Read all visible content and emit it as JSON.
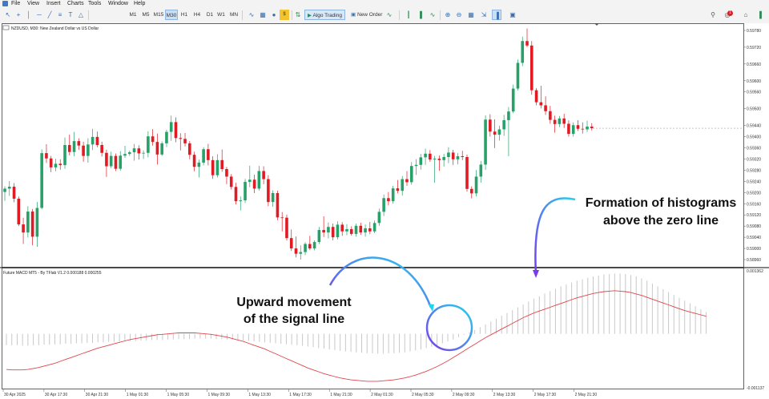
{
  "menu": [
    "File",
    "View",
    "Insert",
    "Charts",
    "Tools",
    "Window",
    "Help"
  ],
  "toolbar": {
    "timeframes": [
      "M1",
      "M5",
      "M15",
      "M30",
      "H1",
      "H4",
      "D1",
      "W1",
      "MN"
    ],
    "active_timeframe": "M30",
    "algo_trading_label": "Algo Trading",
    "new_order_label": "New Order",
    "notification_count": "1",
    "icons": [
      "cursor-icon",
      "crosshair-icon",
      "vertical-line-icon",
      "horizontal-line-icon",
      "trendline-icon",
      "channel-icon",
      "text-icon",
      "shapes-icon",
      "indicators-icon",
      "templates-icon",
      "signals-icon",
      "algo-trading-icon",
      "new-order-icon",
      "trade-icon",
      "bar-chart-icon",
      "candles-icon",
      "line-chart-icon",
      "zoom-in-icon",
      "zoom-out-icon",
      "grid-icon",
      "autoscroll-icon",
      "chart-shift-icon",
      "screenshot-icon"
    ]
  },
  "chart": {
    "title": "NZDUSD, M30:  New Zealand Dollar vs US Dollar",
    "colors": {
      "bull": "#26a269",
      "bear": "#e01b24",
      "signal": "#e0454a",
      "histogram": "#c8c8c8",
      "border": "#3b3b3b"
    },
    "price_axis": [
      "0.59780",
      "0.59720",
      "0.59660",
      "0.59600",
      "0.59560",
      "0.59500",
      "0.59440",
      "0.59400",
      "0.59360",
      "0.59320",
      "0.59280",
      "0.59240",
      "0.59200",
      "0.59160",
      "0.59120",
      "0.59080",
      "0.59040",
      "0.59000",
      "0.58960"
    ],
    "time_axis": [
      "30 Apr 2025",
      "30 Apr 17:30",
      "30 Apr 21:30",
      "1 May 01:30",
      "1 May 05:30",
      "1 May 09:30",
      "1 May 13:30",
      "1 May 17:30",
      "1 May 21:30",
      "2 May 01:30",
      "2 May 05:30",
      "2 May 09:30",
      "2 May 13:30",
      "2 May 17:30",
      "2 May 21:30"
    ],
    "candles": [
      {
        "o": 0.59202,
        "h": 0.59222,
        "l": 0.5917,
        "c": 0.59214
      },
      {
        "o": 0.59214,
        "h": 0.59241,
        "l": 0.59188,
        "c": 0.59221
      },
      {
        "o": 0.59221,
        "h": 0.59234,
        "l": 0.59165,
        "c": 0.59178
      },
      {
        "o": 0.59178,
        "h": 0.59186,
        "l": 0.5908,
        "c": 0.59086
      },
      {
        "o": 0.59086,
        "h": 0.5911,
        "l": 0.59016,
        "c": 0.59057
      },
      {
        "o": 0.59057,
        "h": 0.59151,
        "l": 0.59039,
        "c": 0.59132
      },
      {
        "o": 0.59132,
        "h": 0.59141,
        "l": 0.59011,
        "c": 0.59042
      },
      {
        "o": 0.59042,
        "h": 0.59166,
        "l": 0.59006,
        "c": 0.59145
      },
      {
        "o": 0.59145,
        "h": 0.59354,
        "l": 0.5914,
        "c": 0.59341
      },
      {
        "o": 0.59341,
        "h": 0.59373,
        "l": 0.59306,
        "c": 0.59322
      },
      {
        "o": 0.59322,
        "h": 0.59331,
        "l": 0.59273,
        "c": 0.5929
      },
      {
        "o": 0.5929,
        "h": 0.59321,
        "l": 0.59276,
        "c": 0.59303
      },
      {
        "o": 0.59303,
        "h": 0.59319,
        "l": 0.59282,
        "c": 0.59298
      },
      {
        "o": 0.59298,
        "h": 0.59397,
        "l": 0.59285,
        "c": 0.5937
      },
      {
        "o": 0.5937,
        "h": 0.59407,
        "l": 0.59333,
        "c": 0.59345
      },
      {
        "o": 0.59345,
        "h": 0.59417,
        "l": 0.5933,
        "c": 0.59384
      },
      {
        "o": 0.59384,
        "h": 0.59394,
        "l": 0.59353,
        "c": 0.59368
      },
      {
        "o": 0.59368,
        "h": 0.59382,
        "l": 0.5931,
        "c": 0.59331
      },
      {
        "o": 0.59331,
        "h": 0.59394,
        "l": 0.59307,
        "c": 0.59372
      },
      {
        "o": 0.59372,
        "h": 0.59428,
        "l": 0.59352,
        "c": 0.59399
      },
      {
        "o": 0.59399,
        "h": 0.59418,
        "l": 0.59362,
        "c": 0.5937
      },
      {
        "o": 0.5937,
        "h": 0.59382,
        "l": 0.59329,
        "c": 0.59342
      },
      {
        "o": 0.59342,
        "h": 0.59353,
        "l": 0.59256,
        "c": 0.59294
      },
      {
        "o": 0.59294,
        "h": 0.59346,
        "l": 0.59287,
        "c": 0.59331
      },
      {
        "o": 0.59331,
        "h": 0.5934,
        "l": 0.59277,
        "c": 0.59285
      },
      {
        "o": 0.59285,
        "h": 0.59348,
        "l": 0.59278,
        "c": 0.59332
      },
      {
        "o": 0.59332,
        "h": 0.59367,
        "l": 0.59324,
        "c": 0.59338
      },
      {
        "o": 0.59338,
        "h": 0.5935,
        "l": 0.59331,
        "c": 0.59344
      },
      {
        "o": 0.59344,
        "h": 0.59374,
        "l": 0.59314,
        "c": 0.59358
      },
      {
        "o": 0.59358,
        "h": 0.59369,
        "l": 0.59318,
        "c": 0.5934
      },
      {
        "o": 0.5934,
        "h": 0.59351,
        "l": 0.5932,
        "c": 0.59342
      },
      {
        "o": 0.59342,
        "h": 0.59419,
        "l": 0.59326,
        "c": 0.59401
      },
      {
        "o": 0.59401,
        "h": 0.59427,
        "l": 0.59368,
        "c": 0.59381
      },
      {
        "o": 0.59381,
        "h": 0.59411,
        "l": 0.593,
        "c": 0.59336
      },
      {
        "o": 0.59336,
        "h": 0.59383,
        "l": 0.59331,
        "c": 0.59376
      },
      {
        "o": 0.59376,
        "h": 0.59425,
        "l": 0.59363,
        "c": 0.59417
      },
      {
        "o": 0.59417,
        "h": 0.59475,
        "l": 0.59385,
        "c": 0.59452
      },
      {
        "o": 0.59452,
        "h": 0.59469,
        "l": 0.5938,
        "c": 0.59395
      },
      {
        "o": 0.59395,
        "h": 0.59412,
        "l": 0.59351,
        "c": 0.59392
      },
      {
        "o": 0.59392,
        "h": 0.59413,
        "l": 0.59365,
        "c": 0.59376
      },
      {
        "o": 0.59376,
        "h": 0.59384,
        "l": 0.59319,
        "c": 0.59335
      },
      {
        "o": 0.59335,
        "h": 0.59346,
        "l": 0.59276,
        "c": 0.59292
      },
      {
        "o": 0.59292,
        "h": 0.59318,
        "l": 0.59254,
        "c": 0.59307
      },
      {
        "o": 0.59307,
        "h": 0.59362,
        "l": 0.59297,
        "c": 0.59355
      },
      {
        "o": 0.59355,
        "h": 0.59374,
        "l": 0.59297,
        "c": 0.59316
      },
      {
        "o": 0.59316,
        "h": 0.5933,
        "l": 0.59249,
        "c": 0.59262
      },
      {
        "o": 0.59262,
        "h": 0.59337,
        "l": 0.59254,
        "c": 0.59316
      },
      {
        "o": 0.59316,
        "h": 0.59354,
        "l": 0.59274,
        "c": 0.59284
      },
      {
        "o": 0.59284,
        "h": 0.59292,
        "l": 0.5923,
        "c": 0.59257
      },
      {
        "o": 0.59257,
        "h": 0.59266,
        "l": 0.59211,
        "c": 0.5922
      },
      {
        "o": 0.5922,
        "h": 0.59235,
        "l": 0.59158,
        "c": 0.59169
      },
      {
        "o": 0.59169,
        "h": 0.59186,
        "l": 0.59136,
        "c": 0.59172
      },
      {
        "o": 0.59172,
        "h": 0.59249,
        "l": 0.59163,
        "c": 0.59238
      },
      {
        "o": 0.59238,
        "h": 0.59296,
        "l": 0.59219,
        "c": 0.59246
      },
      {
        "o": 0.59246,
        "h": 0.59264,
        "l": 0.59198,
        "c": 0.59214
      },
      {
        "o": 0.59214,
        "h": 0.59295,
        "l": 0.59207,
        "c": 0.59277
      },
      {
        "o": 0.59277,
        "h": 0.59294,
        "l": 0.5923,
        "c": 0.59248
      },
      {
        "o": 0.59248,
        "h": 0.59262,
        "l": 0.59151,
        "c": 0.59166
      },
      {
        "o": 0.59166,
        "h": 0.59208,
        "l": 0.59149,
        "c": 0.59198
      },
      {
        "o": 0.59198,
        "h": 0.59207,
        "l": 0.59101,
        "c": 0.59111
      },
      {
        "o": 0.59111,
        "h": 0.5913,
        "l": 0.59061,
        "c": 0.5911
      },
      {
        "o": 0.5911,
        "h": 0.59121,
        "l": 0.59028,
        "c": 0.59037
      },
      {
        "o": 0.59037,
        "h": 0.59068,
        "l": 0.58991,
        "c": 0.59
      },
      {
        "o": 0.59,
        "h": 0.59043,
        "l": 0.58968,
        "c": 0.58981
      },
      {
        "o": 0.58981,
        "h": 0.59011,
        "l": 0.5896,
        "c": 0.58987
      },
      {
        "o": 0.58987,
        "h": 0.59022,
        "l": 0.58976,
        "c": 0.59016
      },
      {
        "o": 0.59016,
        "h": 0.59045,
        "l": 0.58994,
        "c": 0.59
      },
      {
        "o": 0.59,
        "h": 0.59029,
        "l": 0.58993,
        "c": 0.59023
      },
      {
        "o": 0.59023,
        "h": 0.59077,
        "l": 0.59016,
        "c": 0.59066
      },
      {
        "o": 0.59066,
        "h": 0.59115,
        "l": 0.59041,
        "c": 0.59057
      },
      {
        "o": 0.59057,
        "h": 0.59093,
        "l": 0.59036,
        "c": 0.59077
      },
      {
        "o": 0.59077,
        "h": 0.59089,
        "l": 0.59029,
        "c": 0.5904
      },
      {
        "o": 0.5904,
        "h": 0.59097,
        "l": 0.59032,
        "c": 0.59085
      },
      {
        "o": 0.59085,
        "h": 0.59094,
        "l": 0.59045,
        "c": 0.59061
      },
      {
        "o": 0.59061,
        "h": 0.59087,
        "l": 0.59047,
        "c": 0.59069
      },
      {
        "o": 0.59069,
        "h": 0.59079,
        "l": 0.59046,
        "c": 0.59052
      },
      {
        "o": 0.59052,
        "h": 0.59089,
        "l": 0.59042,
        "c": 0.59081
      },
      {
        "o": 0.59081,
        "h": 0.59092,
        "l": 0.59049,
        "c": 0.59057
      },
      {
        "o": 0.59057,
        "h": 0.59086,
        "l": 0.59042,
        "c": 0.59072
      },
      {
        "o": 0.59072,
        "h": 0.59095,
        "l": 0.59051,
        "c": 0.59061
      },
      {
        "o": 0.59061,
        "h": 0.591,
        "l": 0.59055,
        "c": 0.59091
      },
      {
        "o": 0.59091,
        "h": 0.59142,
        "l": 0.59081,
        "c": 0.59131
      },
      {
        "o": 0.59131,
        "h": 0.59193,
        "l": 0.59116,
        "c": 0.5918
      },
      {
        "o": 0.5918,
        "h": 0.59202,
        "l": 0.59154,
        "c": 0.59169
      },
      {
        "o": 0.59169,
        "h": 0.59224,
        "l": 0.5916,
        "c": 0.59215
      },
      {
        "o": 0.59215,
        "h": 0.59245,
        "l": 0.59197,
        "c": 0.59206
      },
      {
        "o": 0.59206,
        "h": 0.59259,
        "l": 0.59189,
        "c": 0.59248
      },
      {
        "o": 0.59248,
        "h": 0.59277,
        "l": 0.59224,
        "c": 0.59237
      },
      {
        "o": 0.59237,
        "h": 0.59309,
        "l": 0.59228,
        "c": 0.59295
      },
      {
        "o": 0.59295,
        "h": 0.59319,
        "l": 0.59263,
        "c": 0.59299
      },
      {
        "o": 0.59299,
        "h": 0.59338,
        "l": 0.59282,
        "c": 0.59326
      },
      {
        "o": 0.59326,
        "h": 0.59357,
        "l": 0.59299,
        "c": 0.59339
      },
      {
        "o": 0.59339,
        "h": 0.59352,
        "l": 0.5931,
        "c": 0.59318
      },
      {
        "o": 0.59318,
        "h": 0.59331,
        "l": 0.59235,
        "c": 0.59321
      },
      {
        "o": 0.59321,
        "h": 0.59332,
        "l": 0.59278,
        "c": 0.59316
      },
      {
        "o": 0.59316,
        "h": 0.59339,
        "l": 0.59293,
        "c": 0.59327
      },
      {
        "o": 0.59327,
        "h": 0.59362,
        "l": 0.59305,
        "c": 0.59343
      },
      {
        "o": 0.59343,
        "h": 0.59353,
        "l": 0.59299,
        "c": 0.59319
      },
      {
        "o": 0.59319,
        "h": 0.59341,
        "l": 0.59301,
        "c": 0.5933
      },
      {
        "o": 0.5933,
        "h": 0.59349,
        "l": 0.59316,
        "c": 0.59327
      },
      {
        "o": 0.59327,
        "h": 0.59336,
        "l": 0.59203,
        "c": 0.59213
      },
      {
        "o": 0.59213,
        "h": 0.59222,
        "l": 0.59179,
        "c": 0.59197
      },
      {
        "o": 0.59197,
        "h": 0.5928,
        "l": 0.59186,
        "c": 0.59257
      },
      {
        "o": 0.59257,
        "h": 0.59313,
        "l": 0.59235,
        "c": 0.593
      },
      {
        "o": 0.593,
        "h": 0.59476,
        "l": 0.59281,
        "c": 0.59461
      },
      {
        "o": 0.59461,
        "h": 0.5948,
        "l": 0.594,
        "c": 0.59418
      },
      {
        "o": 0.59418,
        "h": 0.59462,
        "l": 0.59359,
        "c": 0.59407
      },
      {
        "o": 0.59407,
        "h": 0.59439,
        "l": 0.59386,
        "c": 0.59426
      },
      {
        "o": 0.59426,
        "h": 0.59478,
        "l": 0.59403,
        "c": 0.59459
      },
      {
        "o": 0.59459,
        "h": 0.59506,
        "l": 0.5933,
        "c": 0.5949
      },
      {
        "o": 0.5949,
        "h": 0.59586,
        "l": 0.59484,
        "c": 0.59572
      },
      {
        "o": 0.59572,
        "h": 0.59676,
        "l": 0.59565,
        "c": 0.59664
      },
      {
        "o": 0.59664,
        "h": 0.59758,
        "l": 0.59652,
        "c": 0.59742
      },
      {
        "o": 0.59742,
        "h": 0.59787,
        "l": 0.5972,
        "c": 0.59726
      },
      {
        "o": 0.59726,
        "h": 0.59742,
        "l": 0.5955,
        "c": 0.59566
      },
      {
        "o": 0.59566,
        "h": 0.59574,
        "l": 0.59512,
        "c": 0.59523
      },
      {
        "o": 0.59523,
        "h": 0.59582,
        "l": 0.59501,
        "c": 0.59512
      },
      {
        "o": 0.59512,
        "h": 0.59544,
        "l": 0.59478,
        "c": 0.59491
      },
      {
        "o": 0.59491,
        "h": 0.5951,
        "l": 0.59446,
        "c": 0.5946
      },
      {
        "o": 0.5946,
        "h": 0.59475,
        "l": 0.59414,
        "c": 0.59445
      },
      {
        "o": 0.59445,
        "h": 0.59474,
        "l": 0.59434,
        "c": 0.59465
      },
      {
        "o": 0.59465,
        "h": 0.59482,
        "l": 0.59431,
        "c": 0.59446
      },
      {
        "o": 0.59446,
        "h": 0.59458,
        "l": 0.594,
        "c": 0.5941
      },
      {
        "o": 0.5941,
        "h": 0.59451,
        "l": 0.594,
        "c": 0.59441
      },
      {
        "o": 0.59441,
        "h": 0.59459,
        "l": 0.5942,
        "c": 0.59428
      },
      {
        "o": 0.59428,
        "h": 0.59451,
        "l": 0.59411,
        "c": 0.59426
      },
      {
        "o": 0.59426,
        "h": 0.59457,
        "l": 0.59417,
        "c": 0.59436
      },
      {
        "o": 0.59436,
        "h": 0.59448,
        "l": 0.59422,
        "c": 0.5943
      }
    ],
    "current_price": 0.5943
  },
  "indicator": {
    "title": "Future MACD MT5 - By TFlab V1.2 0.000188 0.000255",
    "axis_top": "0.001362",
    "axis_bottom": "-0.001137",
    "range": [
      -0.001137,
      0.001362
    ],
    "histogram": [
      -0.00024,
      -0.00024,
      -0.00024,
      -0.00025,
      -0.00025,
      -0.00024,
      -0.00024,
      -0.00023,
      -0.00023,
      -0.00022,
      -0.00022,
      -0.00021,
      -0.00021,
      -0.0002,
      -0.0002,
      -0.00019,
      -0.00019,
      -0.00018,
      -0.00018,
      -0.00017,
      -0.00017,
      -0.00016,
      -0.00016,
      -0.00015,
      -0.00015,
      -0.00014,
      -0.00014,
      -0.00013,
      -0.00013,
      -0.00013,
      -0.00012,
      -0.00012,
      -0.00011,
      -0.00011,
      -0.00011,
      -0.0001,
      -0.0001,
      -0.0001,
      -0.0001,
      -0.00011,
      -0.00011,
      -0.00012,
      -0.00012,
      -0.00013,
      -0.00014,
      -0.00015,
      -0.00016,
      -0.00017,
      -0.00018,
      -0.00019,
      -0.0002,
      -0.00021,
      -0.00022,
      -0.00023,
      -0.00024,
      -0.00025,
      -0.00027,
      -0.00028,
      -0.0003,
      -0.00031,
      -0.00033,
      -0.00034,
      -0.00036,
      -0.00037,
      -0.00038,
      -0.00039,
      -0.0004,
      -0.00041,
      -0.00041,
      -0.00042,
      -0.00042,
      -0.00041,
      -0.00041,
      -0.0004,
      -0.00039,
      -0.00037,
      -0.00035,
      -0.00033,
      -0.0003,
      -0.00027,
      -0.00024,
      -0.0002,
      -0.00016,
      -0.00012,
      -7e-05,
      -2e-05,
      3e-05,
      8e-05,
      0.00014,
      0.0002,
      0.00026,
      0.00032,
      0.00038,
      0.00044,
      0.0005,
      0.00056,
      0.00062,
      0.00068,
      0.00074,
      0.00079,
      0.00085,
      0.0009,
      0.00095,
      0.001,
      0.00104,
      0.00108,
      0.00112,
      0.00115,
      0.00118,
      0.00121,
      0.00123,
      0.00125,
      0.00126,
      0.00127,
      0.00127,
      0.00126,
      0.00124,
      0.00121,
      0.00117,
      0.00112,
      0.00106,
      0.001,
      0.00094,
      0.00088,
      0.00082,
      0.00076,
      0.0007,
      0.00064,
      0.00058,
      0.00052,
      0.00046
    ],
    "signal": [
      -0.00075,
      -0.00076,
      -0.00076,
      -0.00076,
      -0.00075,
      -0.00073,
      -0.00071,
      -0.00068,
      -0.00065,
      -0.00062,
      -0.00058,
      -0.00054,
      -0.0005,
      -0.00046,
      -0.00042,
      -0.00038,
      -0.00034,
      -0.0003,
      -0.00027,
      -0.00024,
      -0.00021,
      -0.00018,
      -0.00015,
      -0.00012,
      -0.0001,
      -8e-05,
      -6e-05,
      -4e-05,
      -2e-05,
      -1e-05,
      0,
      1e-05,
      2e-05,
      2e-05,
      2e-05,
      2e-05,
      1e-05,
      0,
      -1e-05,
      -3e-05,
      -5e-05,
      -7e-05,
      -0.0001,
      -0.00013,
      -0.00016,
      -0.0002,
      -0.00024,
      -0.00028,
      -0.00032,
      -0.00037,
      -0.00042,
      -0.00047,
      -0.00052,
      -0.00057,
      -0.00062,
      -0.00067,
      -0.00072,
      -0.00076,
      -0.0008,
      -0.00084,
      -0.00087,
      -0.0009,
      -0.00093,
      -0.00095,
      -0.00097,
      -0.00098,
      -0.00099,
      -0.001,
      -0.001,
      -0.001,
      -0.00099,
      -0.00098,
      -0.00097,
      -0.00095,
      -0.00093,
      -0.0009,
      -0.00087,
      -0.00083,
      -0.00079,
      -0.00074,
      -0.00069,
      -0.00063,
      -0.00057,
      -0.0005,
      -0.00043,
      -0.00036,
      -0.00029,
      -0.00022,
      -0.00015,
      -8e-05,
      -2e-05,
      4e-05,
      0.0001,
      0.00016,
      0.00022,
      0.00028,
      0.00034,
      0.00039,
      0.00044,
      0.00048,
      0.00052,
      0.00056,
      0.0006,
      0.00064,
      0.00068,
      0.00072,
      0.00076,
      0.00079,
      0.00082,
      0.00085,
      0.00087,
      0.00089,
      0.0009,
      0.00091,
      0.0009,
      0.00089,
      0.00087,
      0.00084,
      0.00081,
      0.00077,
      0.00073,
      0.00069,
      0.00065,
      0.00061,
      0.00057,
      0.00053,
      0.00049,
      0.00046,
      0.00043,
      0.0004,
      0.00037
    ]
  },
  "annotations": {
    "upward_line1": "Upward movement",
    "upward_line2": "of the signal line",
    "formation_line1": "Formation of histograms",
    "formation_line2": "above the zero line",
    "colors": {
      "arrow_start": "#7c3aed",
      "arrow_end": "#22d3ee"
    }
  }
}
